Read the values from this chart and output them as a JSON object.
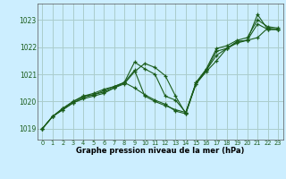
{
  "bg_color": "#cceeff",
  "grid_color": "#aacccc",
  "line_color": "#1a5c1a",
  "xlabel": "Graphe pression niveau de la mer (hPa)",
  "xlim": [
    -0.5,
    23.5
  ],
  "ylim": [
    1018.6,
    1023.6
  ],
  "yticks": [
    1019,
    1020,
    1021,
    1022,
    1023
  ],
  "xticks": [
    0,
    1,
    2,
    3,
    4,
    5,
    6,
    7,
    8,
    9,
    10,
    11,
    12,
    13,
    14,
    15,
    16,
    17,
    18,
    19,
    20,
    21,
    22,
    23
  ],
  "lines": [
    [
      1019.0,
      1019.45,
      1019.7,
      1019.95,
      1020.1,
      1020.2,
      1020.3,
      1020.5,
      1020.7,
      1021.45,
      1021.2,
      1021.0,
      1020.2,
      1020.05,
      1019.6,
      1020.65,
      1021.15,
      1021.85,
      1021.95,
      1022.2,
      1022.25,
      1022.85,
      1022.65,
      1022.65
    ],
    [
      1019.0,
      1019.45,
      1019.7,
      1019.95,
      1020.15,
      1020.25,
      1020.35,
      1020.5,
      1020.65,
      1021.1,
      1021.4,
      1021.25,
      1020.95,
      1020.2,
      1019.55,
      1020.7,
      1021.2,
      1021.95,
      1022.05,
      1022.25,
      1022.35,
      1023.0,
      1022.75,
      1022.7
    ],
    [
      1019.0,
      1019.45,
      1019.75,
      1020.0,
      1020.2,
      1020.25,
      1020.4,
      1020.55,
      1020.7,
      1021.15,
      1020.2,
      1020.0,
      1019.85,
      1019.7,
      1019.6,
      1020.7,
      1021.15,
      1021.7,
      1021.95,
      1022.2,
      1022.25,
      1023.2,
      1022.65,
      1022.65
    ],
    [
      1019.0,
      1019.45,
      1019.75,
      1020.0,
      1020.2,
      1020.3,
      1020.45,
      1020.55,
      1020.7,
      1020.5,
      1020.25,
      1020.05,
      1019.9,
      1019.65,
      1019.55,
      1020.65,
      1021.1,
      1021.5,
      1021.95,
      1022.15,
      1022.25,
      1022.35,
      1022.7,
      1022.65
    ]
  ]
}
